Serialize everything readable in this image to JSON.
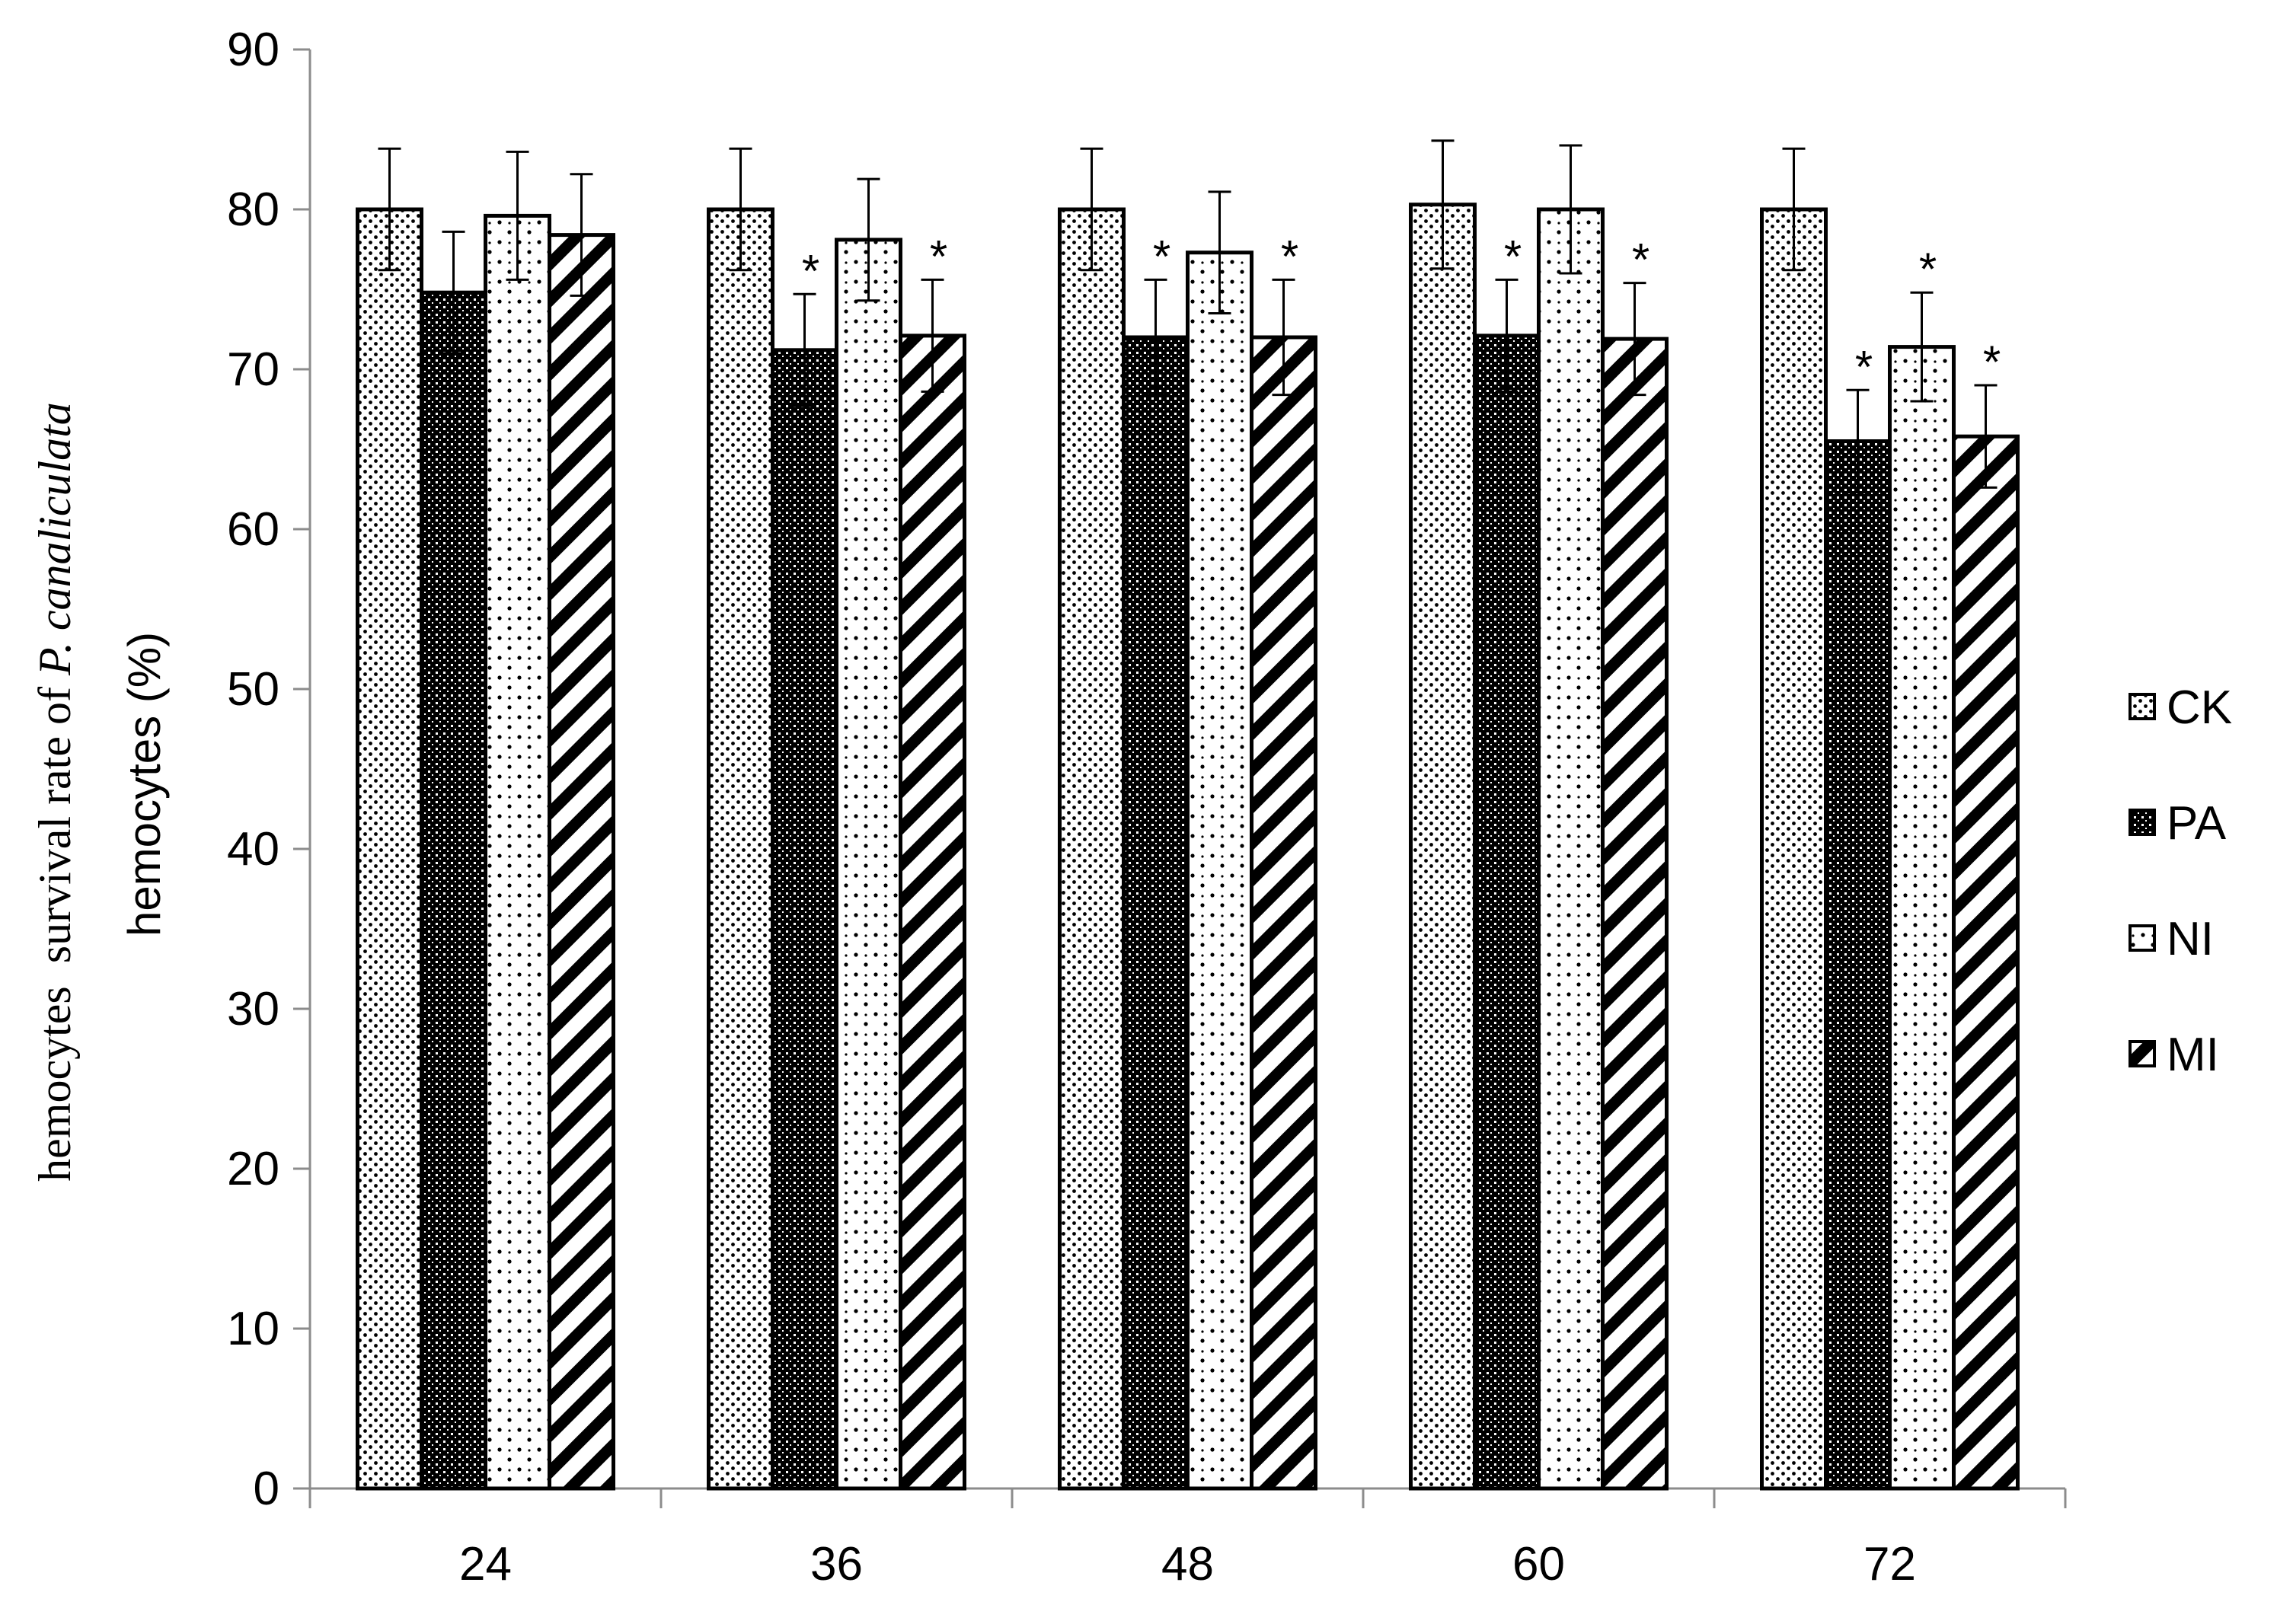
{
  "chart_data": {
    "type": "bar",
    "categories": [
      "24",
      "36",
      "48",
      "60",
      "72"
    ],
    "series": [
      {
        "name": "CK",
        "pattern": "dots-dense",
        "values": [
          80.0,
          80.0,
          80.0,
          80.3,
          80.0
        ],
        "errors": [
          3.8,
          3.8,
          3.8,
          4.0,
          3.8
        ],
        "significant": [
          false,
          false,
          false,
          false,
          false
        ]
      },
      {
        "name": "PA",
        "pattern": "grid-dark",
        "values": [
          74.8,
          71.2,
          72.0,
          72.1,
          65.5
        ],
        "errors": [
          3.8,
          3.5,
          3.6,
          3.5,
          3.2
        ],
        "significant": [
          false,
          true,
          true,
          true,
          true
        ]
      },
      {
        "name": "NI",
        "pattern": "dots-sparse",
        "values": [
          79.6,
          78.1,
          77.3,
          80.0,
          71.4
        ],
        "errors": [
          4.0,
          3.8,
          3.8,
          4.0,
          3.4
        ],
        "significant": [
          false,
          false,
          false,
          false,
          true
        ]
      },
      {
        "name": "MI",
        "pattern": "diagonal",
        "values": [
          78.4,
          72.1,
          72.0,
          71.9,
          65.8
        ],
        "errors": [
          3.8,
          3.5,
          3.6,
          3.5,
          3.2
        ],
        "significant": [
          false,
          true,
          true,
          true,
          true
        ]
      }
    ],
    "significance_marker": "*",
    "ylim": [
      0,
      90
    ],
    "yticks": [
      0,
      10,
      20,
      30,
      40,
      50,
      60,
      70,
      80,
      90
    ],
    "ylabel_line1_prefix": "hemocytes  survival rate of ",
    "ylabel_line1_italic": "P. canaliculata",
    "ylabel_line2": "hemocytes (%)",
    "xlabel": "",
    "title": "",
    "grid": false,
    "legend_position": "right",
    "colors": {
      "bar_stroke": "#000000",
      "fill": "#ffffff",
      "axis": "#8c8c8c"
    }
  }
}
